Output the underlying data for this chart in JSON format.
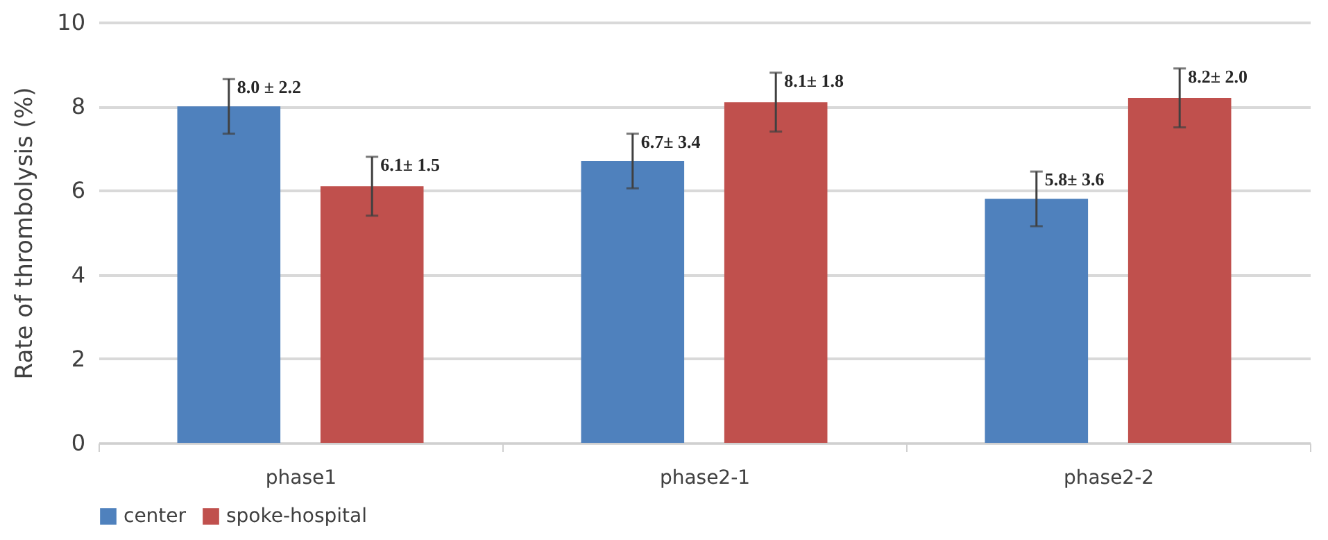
{
  "chart_data": {
    "type": "bar",
    "ylabel": "Rate of thrombolysis (%)",
    "categories": [
      "phase1",
      "phase2-1",
      "phase2-2"
    ],
    "series": [
      {
        "name": "center",
        "color": "#4f81bd",
        "values": [
          8.0,
          6.7,
          5.8
        ],
        "errors": [
          0.65,
          0.65,
          0.65
        ],
        "value_labels": [
          "8.0 ± 2.2",
          "6.7± 3.4",
          "5.8± 3.6"
        ]
      },
      {
        "name": "spoke-hospital",
        "color": "#c0504d",
        "values": [
          6.1,
          8.1,
          8.2
        ],
        "errors": [
          0.7,
          0.7,
          0.7
        ],
        "value_labels": [
          "6.1± 1.5",
          "8.1± 1.8",
          "8.2± 2.0"
        ]
      }
    ],
    "ylim": [
      0,
      10
    ],
    "yticks": [
      0,
      2,
      4,
      6,
      8,
      10
    ],
    "grid": "y",
    "legend": "bottom"
  }
}
